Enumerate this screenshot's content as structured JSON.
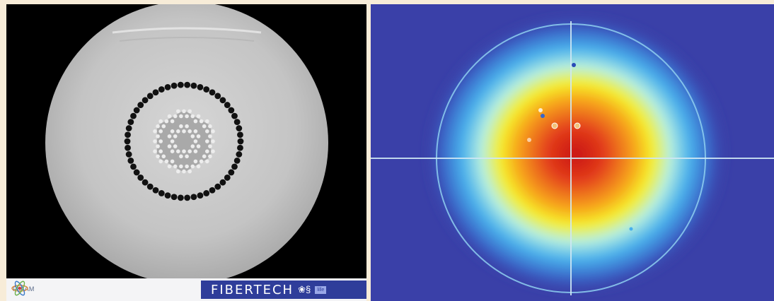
{
  "left_panel": {
    "description_label": "Fiber cross-section (SEM)",
    "logos": {
      "phlam": "PhLAM",
      "fibertech": "FIBERTECH",
      "fibertech_tag": "lille"
    }
  },
  "right_panel": {
    "description_label": "Near-field mode intensity map"
  },
  "colors": {
    "background": "#f7ecd8",
    "sem_black": "#000000",
    "fiber_gray": "#c8c8c8",
    "heatmap_low": "#3a40a8",
    "heatmap_mid": "#4fb8e6",
    "heatmap_high": "#d8241a",
    "fibertech_blue": "#2f3d9a"
  }
}
